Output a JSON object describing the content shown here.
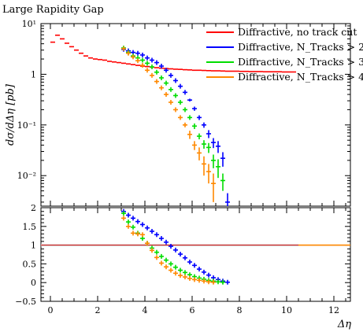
{
  "chart_data": [
    {
      "type": "scatter",
      "title": "Large Rapidity Gap",
      "xlabel": "Δη",
      "ylabel": "dσ/dΔη [pb]",
      "yscale": "log",
      "ylim": [
        0.0025,
        10
      ],
      "xlim": [
        -0.4,
        12.7
      ],
      "grid": false,
      "legend_position": "top-right",
      "yticks": [
        {
          "value": 10,
          "label": "10¹"
        },
        {
          "value": 1,
          "label": "1"
        },
        {
          "value": 0.1,
          "label": "10⁻¹"
        },
        {
          "value": 0.01,
          "label": "10⁻²"
        }
      ],
      "series": [
        {
          "name": "Diffractive, no track cut",
          "color": "#ff0000",
          "bin_width": 0.2,
          "x": [
            0.1,
            0.3,
            0.5,
            0.7,
            0.9,
            1.1,
            1.3,
            1.5,
            1.7,
            1.9,
            2.1,
            2.3,
            2.5,
            2.7,
            2.9,
            3.1,
            3.3,
            3.5,
            3.7,
            3.9,
            4.1,
            4.3,
            4.5,
            4.7,
            4.9,
            5.1,
            5.3,
            5.5,
            5.7,
            5.9,
            6.1,
            6.3,
            6.5,
            6.7,
            6.9,
            7.1,
            7.3,
            7.5,
            7.7,
            7.9,
            8.1,
            8.3,
            8.5,
            8.7,
            8.9,
            9.1,
            9.3,
            9.5,
            9.7,
            9.9,
            10.1,
            10.3
          ],
          "y": [
            4.3,
            5.9,
            5.0,
            4.1,
            3.5,
            3.0,
            2.6,
            2.3,
            2.1,
            2.0,
            1.95,
            1.9,
            1.8,
            1.75,
            1.7,
            1.65,
            1.6,
            1.55,
            1.5,
            1.45,
            1.42,
            1.38,
            1.35,
            1.32,
            1.3,
            1.28,
            1.26,
            1.25,
            1.23,
            1.22,
            1.2,
            1.2,
            1.19,
            1.18,
            1.17,
            1.17,
            1.16,
            1.15,
            1.15,
            1.15,
            1.14,
            1.14,
            1.13,
            1.13,
            1.13,
            1.12,
            1.12,
            1.12,
            1.12,
            1.11,
            1.11,
            1.11
          ]
        },
        {
          "name": "Diffractive, N_Tracks > 2",
          "color": "#0000ff",
          "x": [
            3.1,
            3.3,
            3.5,
            3.7,
            3.9,
            4.1,
            4.3,
            4.5,
            4.7,
            4.9,
            5.1,
            5.3,
            5.5,
            5.7,
            5.9,
            6.1,
            6.3,
            6.5,
            6.7,
            6.9,
            7.1,
            7.3,
            7.5
          ],
          "y": [
            3.1,
            2.9,
            2.7,
            2.6,
            2.4,
            2.1,
            1.9,
            1.7,
            1.45,
            1.2,
            0.95,
            0.75,
            0.58,
            0.44,
            0.31,
            0.21,
            0.14,
            0.1,
            0.067,
            0.045,
            0.038,
            0.022,
            0.003
          ],
          "yerr": [
            0,
            0,
            0,
            0,
            0,
            0,
            0,
            0,
            0,
            0,
            0,
            0,
            0,
            0,
            0.02,
            0.02,
            0.015,
            0.012,
            0.012,
            0.01,
            0.01,
            0.007,
            0.0015
          ]
        },
        {
          "name": "Diffractive, N_Tracks > 3",
          "color": "#00dd00",
          "x": [
            3.1,
            3.3,
            3.5,
            3.7,
            3.9,
            4.1,
            4.3,
            4.5,
            4.7,
            4.9,
            5.1,
            5.3,
            5.5,
            5.7,
            5.9,
            6.1,
            6.3,
            6.5,
            6.7,
            6.9,
            7.1,
            7.3
          ],
          "y": [
            3.3,
            2.7,
            2.3,
            2.1,
            1.9,
            1.65,
            1.4,
            1.1,
            0.85,
            0.67,
            0.5,
            0.38,
            0.28,
            0.2,
            0.14,
            0.095,
            0.06,
            0.042,
            0.036,
            0.02,
            0.015,
            0.008
          ],
          "yerr": [
            0,
            0,
            0,
            0,
            0,
            0,
            0,
            0,
            0,
            0,
            0,
            0,
            0,
            0,
            0,
            0.012,
            0.008,
            0.008,
            0.008,
            0.006,
            0.006,
            0.003
          ]
        },
        {
          "name": "Diffractive, N_Tracks > 4",
          "color": "#ff8800",
          "x": [
            3.1,
            3.3,
            3.5,
            3.7,
            3.9,
            4.1,
            4.3,
            4.5,
            4.7,
            4.9,
            5.1,
            5.3,
            5.5,
            5.7,
            5.9,
            6.1,
            6.3,
            6.5,
            6.7,
            6.9
          ],
          "y": [
            3.2,
            2.6,
            2.2,
            1.85,
            1.5,
            1.2,
            0.95,
            0.72,
            0.54,
            0.4,
            0.28,
            0.2,
            0.14,
            0.1,
            0.065,
            0.04,
            0.028,
            0.017,
            0.012,
            0.007
          ],
          "yerr": [
            0,
            0,
            0,
            0,
            0,
            0,
            0,
            0,
            0,
            0,
            0,
            0,
            0,
            0,
            0.012,
            0.008,
            0.008,
            0.007,
            0.005,
            0.004
          ]
        }
      ]
    },
    {
      "type": "scatter",
      "xlabel": "Δη",
      "ylabel": "",
      "ylim": [
        -0.5,
        2.0
      ],
      "xlim": [
        -0.4,
        12.7
      ],
      "reference_line": 1.0,
      "yticks": [
        {
          "value": 2,
          "label": "2"
        },
        {
          "value": 1.5,
          "label": "1.5"
        },
        {
          "value": 1,
          "label": "1"
        },
        {
          "value": 0.5,
          "label": "0.5"
        },
        {
          "value": 0,
          "label": "0"
        },
        {
          "value": -0.5,
          "label": "−0.5"
        }
      ],
      "xticks": [
        {
          "value": 0,
          "label": "0"
        },
        {
          "value": 2,
          "label": "2"
        },
        {
          "value": 4,
          "label": "4"
        },
        {
          "value": 6,
          "label": "6"
        },
        {
          "value": 8,
          "label": "8"
        },
        {
          "value": 10,
          "label": "10"
        },
        {
          "value": 12,
          "label": "12"
        }
      ],
      "series": [
        {
          "name": "Diffractive, no track cut",
          "color": "#ff0000",
          "style": "flat-band",
          "x_range": [
            -0.4,
            10.5
          ],
          "y": 1.0
        },
        {
          "name": "Diffractive, N_Tracks > 2",
          "color": "#0000ff",
          "x": [
            3.1,
            3.3,
            3.5,
            3.7,
            3.9,
            4.1,
            4.3,
            4.5,
            4.7,
            4.9,
            5.1,
            5.3,
            5.5,
            5.7,
            5.9,
            6.1,
            6.3,
            6.5,
            6.7,
            6.9,
            7.1,
            7.3,
            7.5
          ],
          "y": [
            1.9,
            1.8,
            1.72,
            1.63,
            1.55,
            1.46,
            1.37,
            1.28,
            1.18,
            1.08,
            0.97,
            0.87,
            0.76,
            0.66,
            0.55,
            0.46,
            0.36,
            0.28,
            0.2,
            0.13,
            0.08,
            0.04,
            0.01
          ]
        },
        {
          "name": "Diffractive, N_Tracks > 3",
          "color": "#00dd00",
          "x": [
            3.1,
            3.3,
            3.5,
            3.7,
            3.9,
            4.1,
            4.3,
            4.5,
            4.7,
            4.9,
            5.1,
            5.3,
            5.5,
            5.7,
            5.9,
            6.1,
            6.3,
            6.5,
            6.7,
            6.9,
            7.1,
            7.3
          ],
          "y": [
            1.85,
            1.62,
            1.48,
            1.32,
            1.18,
            1.05,
            0.92,
            0.81,
            0.7,
            0.6,
            0.5,
            0.41,
            0.33,
            0.27,
            0.21,
            0.16,
            0.12,
            0.09,
            0.06,
            0.04,
            0.02,
            0.01
          ]
        },
        {
          "name": "Diffractive, N_Tracks > 4",
          "color": "#ff8800",
          "x": [
            3.1,
            3.3,
            3.5,
            3.7,
            3.9,
            4.1,
            4.3,
            4.5,
            4.7,
            4.9,
            5.1,
            5.3,
            5.5,
            5.7,
            5.9,
            6.1,
            6.3,
            6.5,
            6.7,
            6.9
          ],
          "y": [
            1.72,
            1.5,
            1.32,
            1.3,
            1.28,
            1.05,
            0.86,
            0.67,
            0.52,
            0.42,
            0.33,
            0.25,
            0.19,
            0.15,
            0.11,
            0.08,
            0.06,
            0.04,
            0.02,
            0.01
          ]
        }
      ]
    }
  ],
  "legend_entries": [
    {
      "label": "Diffractive, no track cut",
      "color": "#ff0000"
    },
    {
      "label": "Diffractive, N_Tracks > 2",
      "color": "#0000ff"
    },
    {
      "label": "Diffractive, N_Tracks > 3",
      "color": "#00dd00"
    },
    {
      "label": "Diffractive, N_Tracks > 4",
      "color": "#ff8800"
    }
  ]
}
